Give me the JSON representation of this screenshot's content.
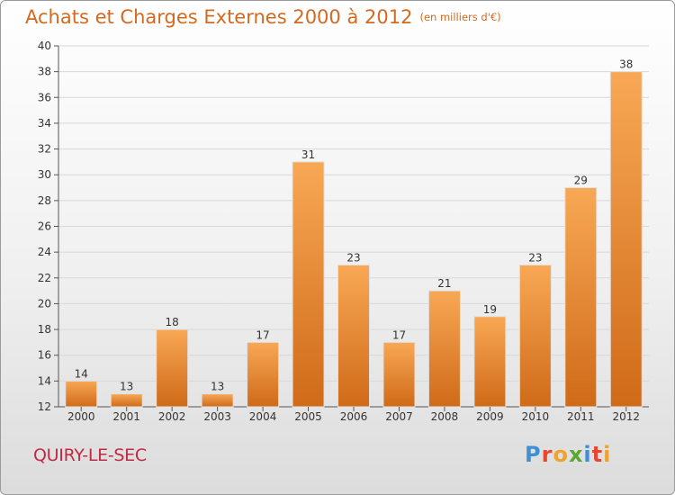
{
  "header": {
    "title": "Achats et Charges Externes 2000 à 2012",
    "unit": "(en milliers d'€)"
  },
  "footer": {
    "commune": "QUIRY-LE-SEC",
    "logo_text": "Proxiti",
    "logo_letters": [
      {
        "ch": "P",
        "color": "#3d8fd6"
      },
      {
        "ch": "r",
        "color": "#e9462f"
      },
      {
        "ch": "o",
        "color": "#f0a22c"
      },
      {
        "ch": "x",
        "color": "#5aa832"
      },
      {
        "ch": "i",
        "color": "#3d8fd6"
      },
      {
        "ch": "t",
        "color": "#e9462f"
      },
      {
        "ch": "i",
        "color": "#f0a22c"
      }
    ]
  },
  "colors": {
    "bar_light": "#f8a855",
    "bar_dark": "#cf6a18",
    "title": "#d4691f",
    "commune": "#c02a45",
    "grid": "#d8d8d8"
  },
  "chart_data": {
    "type": "bar",
    "title": "Achats et Charges Externes 2000 à 2012",
    "subtitle": "(en milliers d'€)",
    "xlabel": "",
    "ylabel": "",
    "categories": [
      "2000",
      "2001",
      "2002",
      "2003",
      "2004",
      "2005",
      "2006",
      "2007",
      "2008",
      "2009",
      "2010",
      "2011",
      "2012"
    ],
    "values": [
      14,
      13,
      18,
      13,
      17,
      31,
      23,
      17,
      21,
      19,
      23,
      29,
      38
    ],
    "ylim": [
      12,
      40
    ],
    "yticks": [
      12,
      14,
      16,
      18,
      20,
      22,
      24,
      26,
      28,
      30,
      32,
      34,
      36,
      38,
      40
    ],
    "grid": true,
    "legend": "none"
  }
}
